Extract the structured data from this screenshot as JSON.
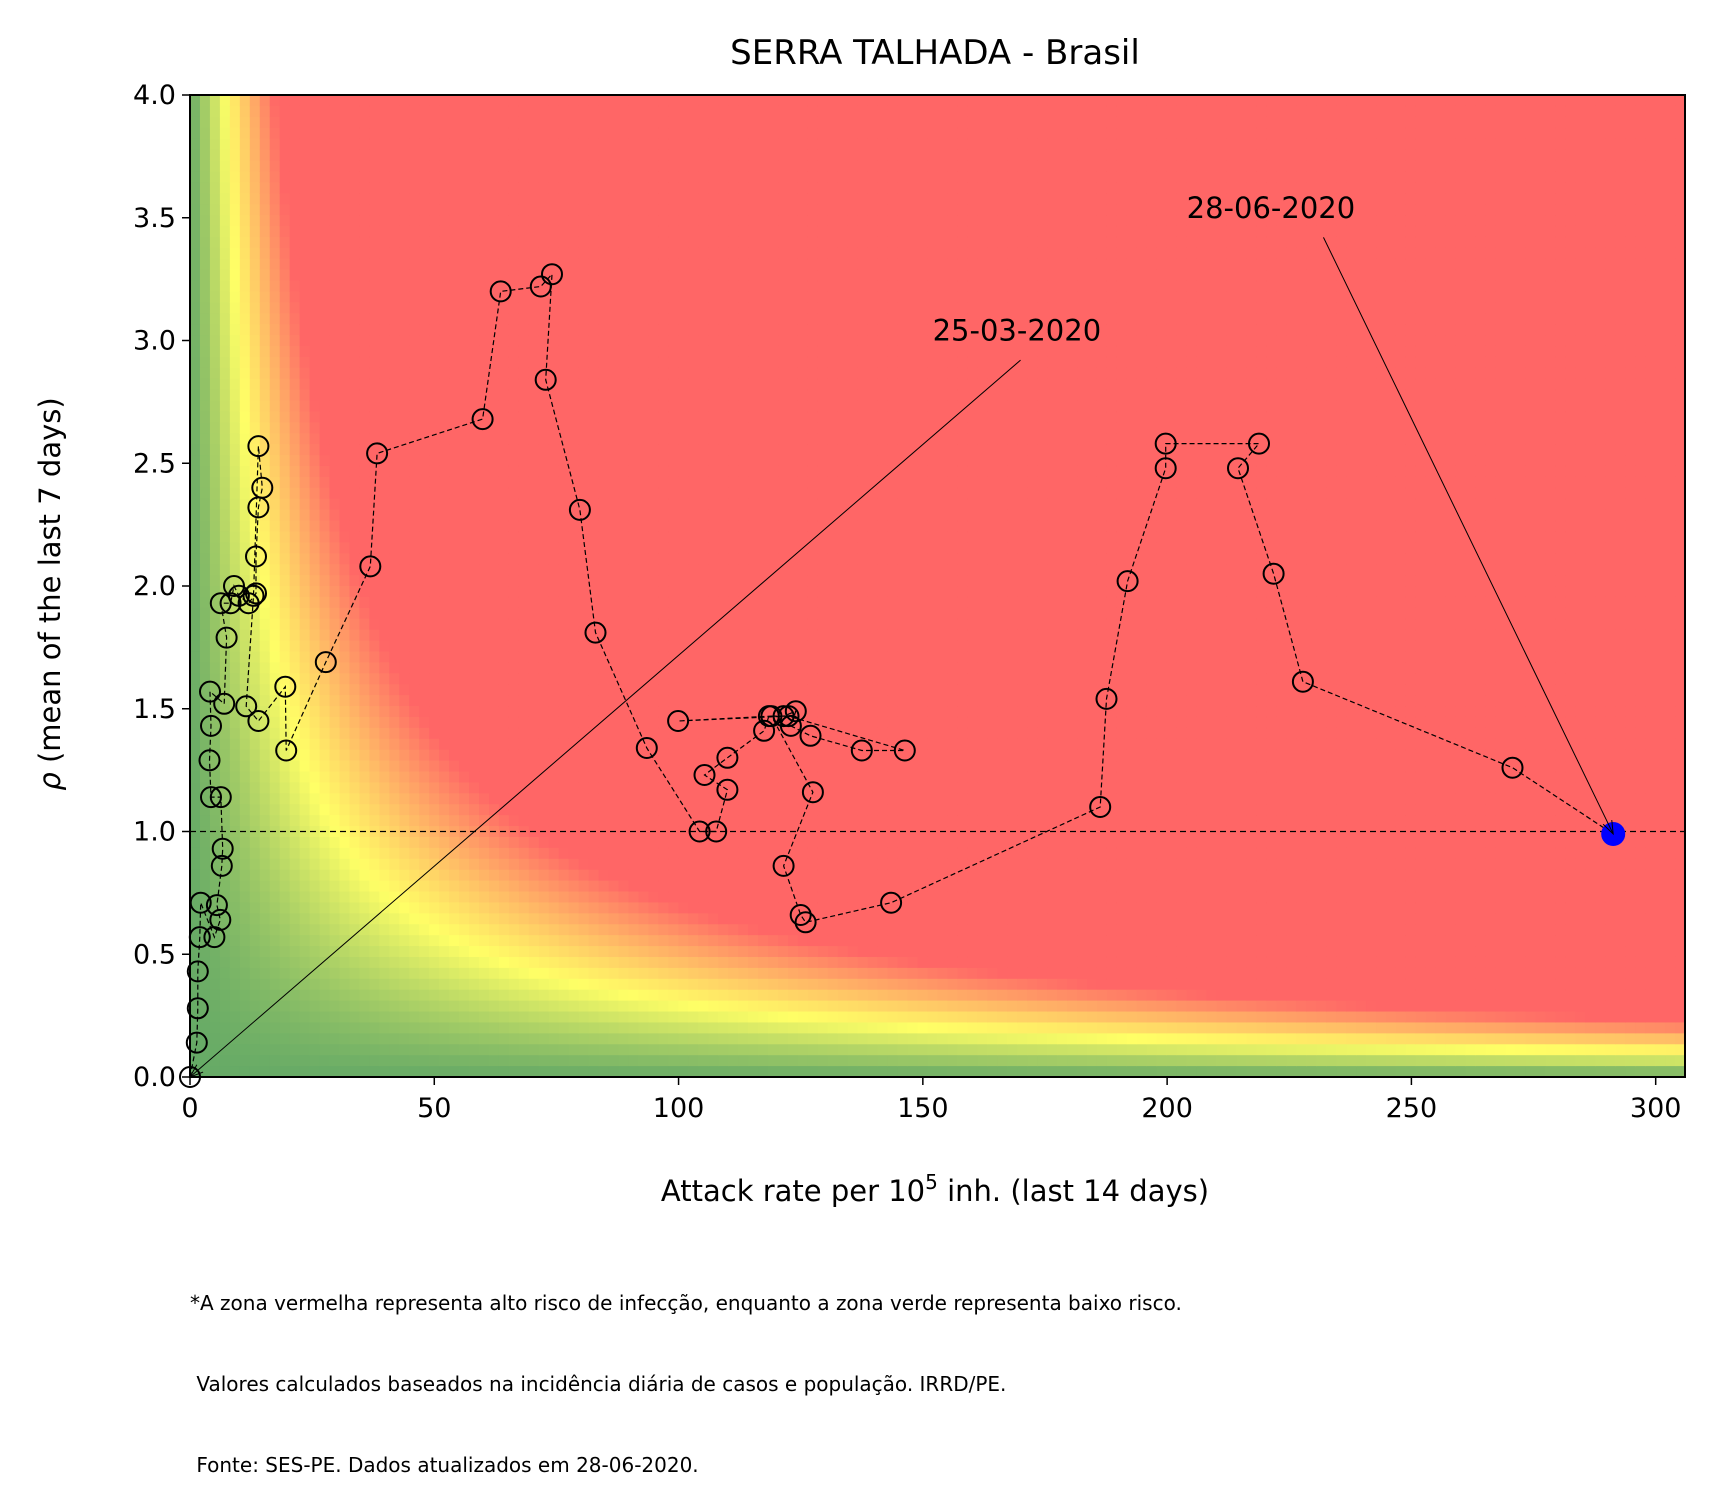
{
  "chart_data": {
    "type": "scatter",
    "title": "SERRA TALHADA - Brasil",
    "xlabel_main": "Attack rate per 10",
    "xlabel_sup": "5",
    "xlabel_tail": " inh. (last 14 days)",
    "ylabel_symbol": "ρ",
    "ylabel_text": " (mean of the last 7 days)",
    "xlim": [
      0,
      306
    ],
    "ylim": [
      0,
      4.0
    ],
    "xticks": [
      0,
      50,
      100,
      150,
      200,
      250,
      300
    ],
    "xtick_labels": [
      "0",
      "50",
      "100",
      "150",
      "200",
      "250",
      "300"
    ],
    "yticks": [
      0.0,
      0.5,
      1.0,
      1.5,
      2.0,
      2.5,
      3.0,
      3.5,
      4.0
    ],
    "ytick_labels": [
      "0.0",
      "0.5",
      "1.0",
      "1.5",
      "2.0",
      "2.5",
      "3.0",
      "3.5",
      "4.0"
    ],
    "reference_line_y": 1.0,
    "risk_colors": {
      "low": "#66aa66",
      "mid": "#ffff66",
      "high": "#ff6666"
    },
    "point_colors": {
      "marker_edge": "#000000",
      "last_point": "#0000ff",
      "line": "#000000"
    },
    "points": [
      [
        0.0,
        0.0
      ],
      [
        1.4,
        0.14
      ],
      [
        1.6,
        0.28
      ],
      [
        1.6,
        0.43
      ],
      [
        2.0,
        0.57
      ],
      [
        2.2,
        0.71
      ],
      [
        5.0,
        0.57
      ],
      [
        6.2,
        0.64
      ],
      [
        5.5,
        0.7
      ],
      [
        6.5,
        0.86
      ],
      [
        6.7,
        0.93
      ],
      [
        6.3,
        1.14
      ],
      [
        4.3,
        1.14
      ],
      [
        4.0,
        1.29
      ],
      [
        4.3,
        1.43
      ],
      [
        4.1,
        1.57
      ],
      [
        7.0,
        1.52
      ],
      [
        7.5,
        1.79
      ],
      [
        6.3,
        1.93
      ],
      [
        8.3,
        1.93
      ],
      [
        9.0,
        2.0
      ],
      [
        10.0,
        1.96
      ],
      [
        12.0,
        1.93
      ],
      [
        13.5,
        1.97
      ],
      [
        13.5,
        2.12
      ],
      [
        14.0,
        2.32
      ],
      [
        14.8,
        2.4
      ],
      [
        14.0,
        2.57
      ],
      [
        13.0,
        1.96
      ],
      [
        11.5,
        1.51
      ],
      [
        14.0,
        1.45
      ],
      [
        19.5,
        1.59
      ],
      [
        19.7,
        1.33
      ],
      [
        27.8,
        1.69
      ],
      [
        36.9,
        2.08
      ],
      [
        38.3,
        2.54
      ],
      [
        59.9,
        2.68
      ],
      [
        63.6,
        3.2
      ],
      [
        71.8,
        3.22
      ],
      [
        74.1,
        3.27
      ],
      [
        72.8,
        2.84
      ],
      [
        79.8,
        2.31
      ],
      [
        83.0,
        1.81
      ],
      [
        93.5,
        1.34
      ],
      [
        104.3,
        1.0
      ],
      [
        107.7,
        1.0
      ],
      [
        110.0,
        1.17
      ],
      [
        105.3,
        1.23
      ],
      [
        110.0,
        1.3
      ],
      [
        117.5,
        1.41
      ],
      [
        118.5,
        1.47
      ],
      [
        121.5,
        1.47
      ],
      [
        124.0,
        1.49
      ],
      [
        123.0,
        1.43
      ],
      [
        127.0,
        1.39
      ],
      [
        137.5,
        1.33
      ],
      [
        146.3,
        1.33
      ],
      [
        122.5,
        1.47
      ],
      [
        99.9,
        1.45
      ],
      [
        119.0,
        1.47
      ],
      [
        127.5,
        1.16
      ],
      [
        121.5,
        0.86
      ],
      [
        125.0,
        0.66
      ],
      [
        126.0,
        0.63
      ],
      [
        143.5,
        0.71
      ],
      [
        186.3,
        1.1
      ],
      [
        187.6,
        1.54
      ],
      [
        191.9,
        2.02
      ],
      [
        199.7,
        2.48
      ],
      [
        199.7,
        2.58
      ],
      [
        218.8,
        2.58
      ],
      [
        214.5,
        2.48
      ],
      [
        221.8,
        2.05
      ],
      [
        227.8,
        1.61
      ],
      [
        270.7,
        1.26
      ],
      [
        291.3,
        0.99
      ]
    ],
    "annotations": [
      {
        "text": "25-03-2020",
        "text_at": [
          152,
          3.0
        ],
        "tip": [
          0,
          0
        ],
        "tail": [
          170,
          2.92
        ]
      },
      {
        "text": "28-06-2020",
        "text_at": [
          204,
          3.5
        ],
        "tip": [
          291.3,
          0.99
        ],
        "tail": [
          232,
          3.42
        ]
      }
    ]
  },
  "footnote": {
    "line1": "*A zona vermelha representa alto risco de infecção, enquanto a zona verde representa baixo risco.",
    "line2": " Valores calculados baseados na incidência diária de casos e população. IRRD/PE.",
    "line3": " Fonte: SES-PE. Dados atualizados em 28-06-2020."
  }
}
